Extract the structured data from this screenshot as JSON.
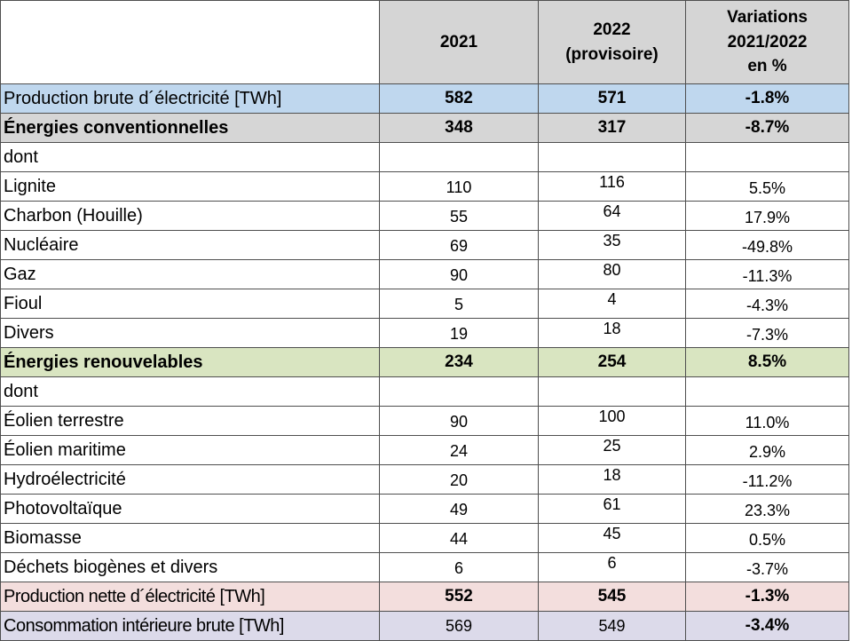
{
  "chart_data": {
    "type": "table",
    "columns": [
      "",
      "2021",
      "2022\n(provisoire)",
      "Variations\n2021/2022\nen %"
    ],
    "rows": [
      {
        "label": "Production brute d´électricité [TWh]",
        "values": [
          "582",
          "571",
          "-1.8%"
        ]
      },
      {
        "label": "Énergies conventionnelles",
        "values": [
          "348",
          "317",
          "-8.7%"
        ]
      },
      {
        "label": "dont",
        "values": [
          "",
          "",
          ""
        ]
      },
      {
        "label": "Lignite",
        "values": [
          "110",
          "116",
          "5.5%"
        ]
      },
      {
        "label": "Charbon (Houille)",
        "values": [
          "55",
          "64",
          "17.9%"
        ]
      },
      {
        "label": "Nucléaire",
        "values": [
          "69",
          "35",
          "-49.8%"
        ]
      },
      {
        "label": "Gaz",
        "values": [
          "90",
          "80",
          "-11.3%"
        ]
      },
      {
        "label": "Fioul",
        "values": [
          "5",
          "4",
          "-4.3%"
        ]
      },
      {
        "label": "Divers",
        "values": [
          "19",
          "18",
          "-7.3%"
        ]
      },
      {
        "label": "Énergies renouvelables",
        "values": [
          "234",
          "254",
          "8.5%"
        ]
      },
      {
        "label": "dont",
        "values": [
          "",
          "",
          ""
        ]
      },
      {
        "label": "Éolien terrestre",
        "values": [
          "90",
          "100",
          "11.0%"
        ]
      },
      {
        "label": "Éolien maritime",
        "values": [
          "24",
          "25",
          "2.9%"
        ]
      },
      {
        "label": "Hydroélectricité",
        "values": [
          "20",
          "18",
          "-11.2%"
        ]
      },
      {
        "label": "Photovoltaïque",
        "values": [
          "49",
          "61",
          "23.3%"
        ]
      },
      {
        "label": "Biomasse",
        "values": [
          "44",
          "45",
          "0.5%"
        ]
      },
      {
        "label": "Déchets biogènes et divers",
        "values": [
          "6",
          "6",
          "-3.7%"
        ]
      },
      {
        "label": "Production nette d´électricité [TWh]",
        "values": [
          "552",
          "545",
          "-1.3%"
        ]
      },
      {
        "label": "Consommation intérieure brute [TWh]",
        "values": [
          "569",
          "549",
          "-3.4%"
        ]
      }
    ]
  },
  "colors": {
    "header_bg": "#d5d5d5",
    "row_blue": "#bfd7ee",
    "row_gray": "#d6d6d6",
    "row_green": "#d9e5c1",
    "row_pink": "#f3dedd",
    "row_lavender": "#dcdaea",
    "border": "#4f4f4f"
  }
}
